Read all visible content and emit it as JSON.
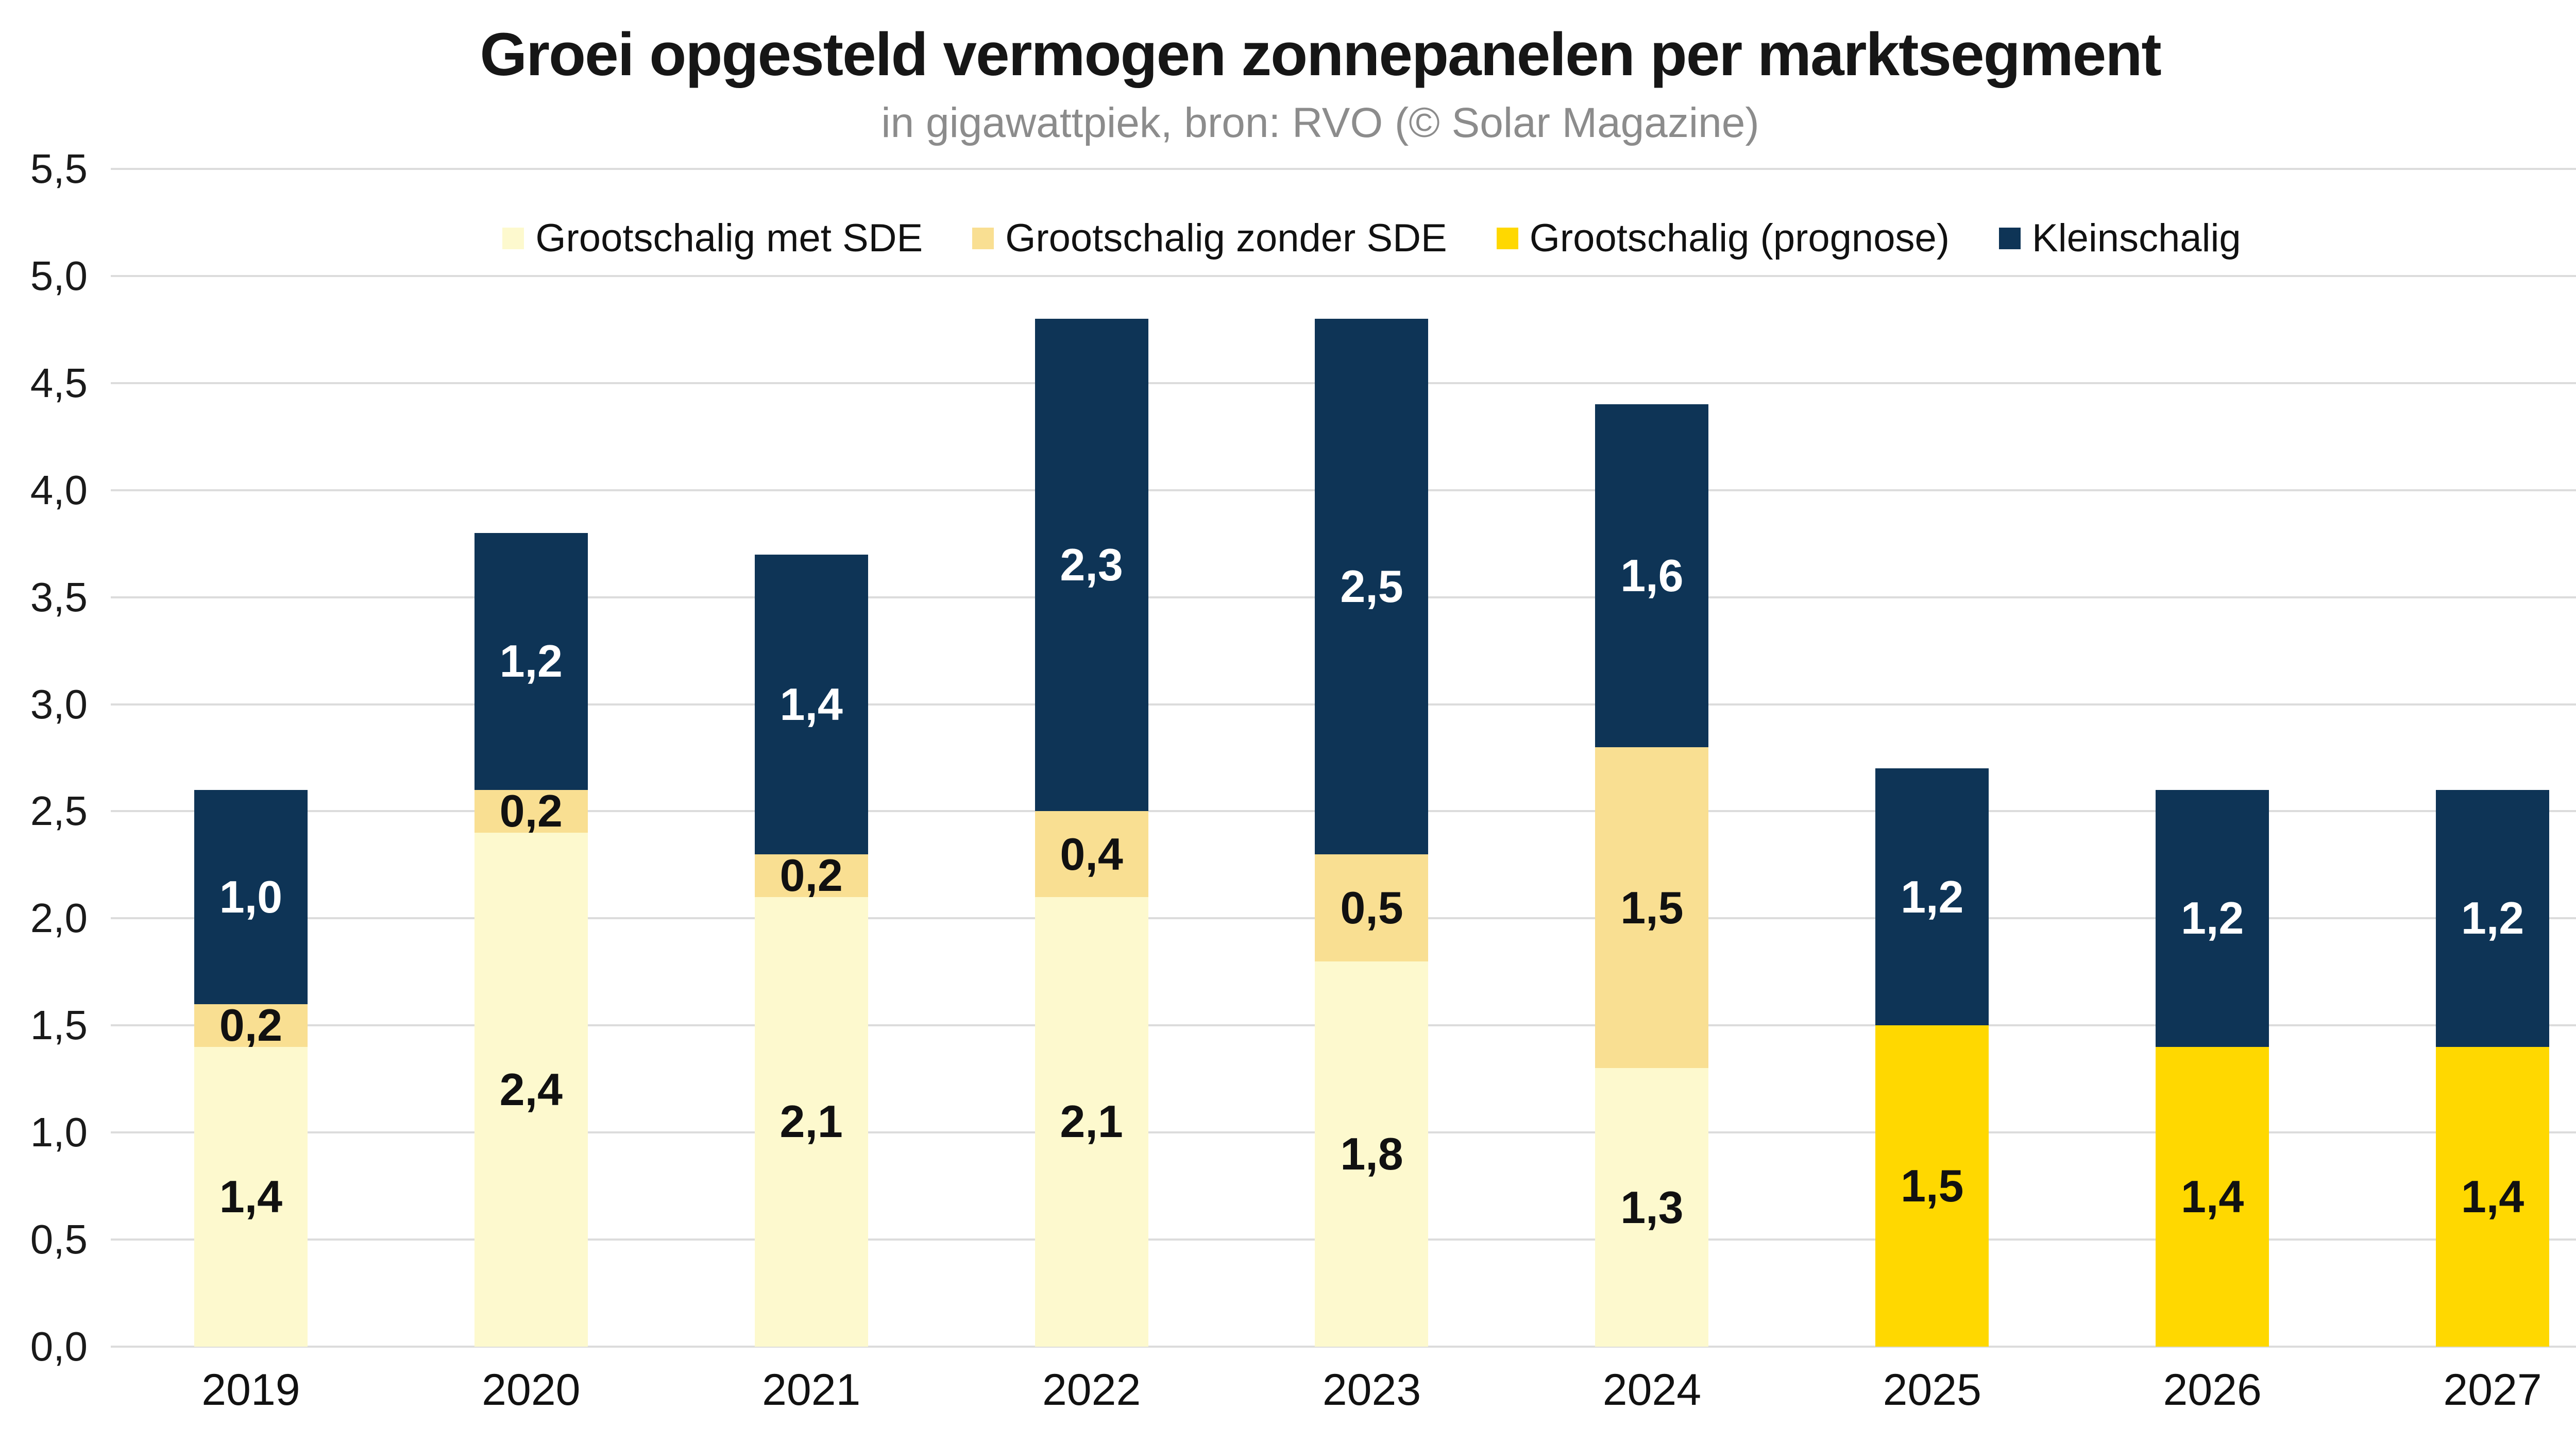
{
  "title": "Groei opgesteld vermogen zonnepanelen per marktsegment",
  "subtitle": "in gigawattpiek, bron: RVO (© Solar Magazine)",
  "colors": {
    "background": "#ffffff",
    "title_text": "#161616",
    "subtitle_text": "#8c8c8c",
    "axis_text": "#1a1a1a",
    "gridline": "#dcdcdc",
    "series_met_sde": "#fdf9ce",
    "series_zonder_sde": "#f9df92",
    "series_prognose": "#ffd800",
    "series_kleinschalig": "#0e3456"
  },
  "chart_data": {
    "type": "bar",
    "stacked": true,
    "title": "Groei opgesteld vermogen zonnepanelen per marktsegment",
    "subtitle": "in gigawattpiek, bron: RVO (© Solar Magazine)",
    "xlabel": "",
    "ylabel": "",
    "ylim": [
      0,
      5.5
    ],
    "ytick_step": 0.5,
    "ytick_labels": [
      "0,0",
      "0,5",
      "1,0",
      "1,5",
      "2,0",
      "2,5",
      "3,0",
      "3,5",
      "4,0",
      "4,5",
      "5,0",
      "5,5"
    ],
    "grid": true,
    "legend_position": "top-center",
    "categories": [
      "2019",
      "2020",
      "2021",
      "2022",
      "2023",
      "2024",
      "2025",
      "2026",
      "2027"
    ],
    "series": [
      {
        "name": "Grootschalig met SDE",
        "color": "#fdf9ce",
        "label_color": "#111111",
        "values": [
          1.4,
          2.4,
          2.1,
          2.1,
          1.8,
          1.3,
          0,
          0,
          0
        ],
        "labels": [
          "1,4",
          "2,4",
          "2,1",
          "2,1",
          "1,8",
          "1,3",
          "",
          "",
          ""
        ]
      },
      {
        "name": "Grootschalig zonder SDE",
        "color": "#f9df92",
        "label_color": "#111111",
        "values": [
          0.2,
          0.2,
          0.2,
          0.4,
          0.5,
          1.5,
          0,
          0,
          0
        ],
        "labels": [
          "0,2",
          "0,2",
          "0,2",
          "0,4",
          "0,5",
          "1,5",
          "",
          "",
          ""
        ]
      },
      {
        "name": "Grootschalig (prognose)",
        "color": "#ffd800",
        "label_color": "#111111",
        "values": [
          0,
          0,
          0,
          0,
          0,
          0,
          1.5,
          1.4,
          1.4
        ],
        "labels": [
          "",
          "",
          "",
          "",
          "",
          "",
          "1,5",
          "1,4",
          "1,4"
        ]
      },
      {
        "name": "Kleinschalig",
        "color": "#0e3456",
        "label_color": "#ffffff",
        "values": [
          1.0,
          1.2,
          1.4,
          2.3,
          2.5,
          1.6,
          1.2,
          1.2,
          1.2
        ],
        "labels": [
          "1,0",
          "1,2",
          "1,4",
          "2,3",
          "2,5",
          "1,6",
          "1,2",
          "1,2",
          "1,2"
        ]
      }
    ],
    "totals": [
      2.6,
      3.8,
      3.7,
      4.8,
      4.8,
      4.4,
      2.7,
      2.6,
      2.6
    ]
  }
}
